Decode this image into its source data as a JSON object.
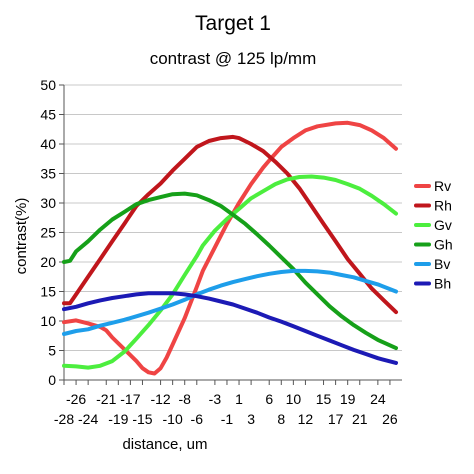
{
  "chart_data": {
    "type": "line",
    "title": "Target 1",
    "subtitle": "contrast @ 125 lp/mm",
    "xlabel": "distance, um",
    "ylabel": "contrast(%)",
    "ylim": [
      0,
      50
    ],
    "yticks": [
      0,
      5,
      10,
      15,
      20,
      25,
      30,
      35,
      40,
      45,
      50
    ],
    "xlim": [
      -28,
      28
    ],
    "xticks_upper": [
      -26,
      -21,
      -17,
      -12,
      -8,
      -3,
      1,
      6,
      10,
      15,
      19,
      24
    ],
    "xticks_lower": [
      -28,
      -24,
      -19,
      -15,
      -10,
      -6,
      -1,
      3,
      8,
      12,
      17,
      21,
      26
    ],
    "grid": "horizontal",
    "legend_position": "right",
    "series": [
      {
        "name": "Rv",
        "color": "#ef4444",
        "points": [
          [
            -28,
            9.8
          ],
          [
            -26,
            10.1
          ],
          [
            -24,
            9.6
          ],
          [
            -22,
            9.0
          ],
          [
            -21,
            8.4
          ],
          [
            -20,
            7.2
          ],
          [
            -18,
            5.2
          ],
          [
            -16,
            3.2
          ],
          [
            -15,
            2.0
          ],
          [
            -14,
            1.3
          ],
          [
            -13,
            1.1
          ],
          [
            -12,
            2.0
          ],
          [
            -11,
            3.8
          ],
          [
            -10,
            6.0
          ],
          [
            -8,
            10.5
          ],
          [
            -6,
            15.8
          ],
          [
            -5,
            18.5
          ],
          [
            -3,
            22.5
          ],
          [
            -1,
            26.5
          ],
          [
            1,
            30.0
          ],
          [
            3,
            33.2
          ],
          [
            5,
            36.0
          ],
          [
            6,
            37.2
          ],
          [
            8,
            39.5
          ],
          [
            10,
            41.0
          ],
          [
            12,
            42.3
          ],
          [
            14,
            43.0
          ],
          [
            17,
            43.5
          ],
          [
            19,
            43.6
          ],
          [
            21,
            43.2
          ],
          [
            23,
            42.3
          ],
          [
            25,
            41.0
          ],
          [
            27,
            39.2
          ]
        ]
      },
      {
        "name": "Rh",
        "color": "#c0161c",
        "points": [
          [
            -28,
            13.0
          ],
          [
            -27,
            13.0
          ],
          [
            -26,
            14.5
          ],
          [
            -24,
            17.5
          ],
          [
            -22,
            20.5
          ],
          [
            -20,
            23.5
          ],
          [
            -18,
            26.5
          ],
          [
            -16,
            29.5
          ],
          [
            -14,
            31.5
          ],
          [
            -12,
            33.3
          ],
          [
            -10,
            35.5
          ],
          [
            -8,
            37.5
          ],
          [
            -6,
            39.5
          ],
          [
            -4,
            40.5
          ],
          [
            -2,
            41.0
          ],
          [
            0,
            41.2
          ],
          [
            1,
            41.0
          ],
          [
            3,
            40.0
          ],
          [
            5,
            38.8
          ],
          [
            7,
            37.0
          ],
          [
            9,
            35.0
          ],
          [
            11,
            32.5
          ],
          [
            13,
            29.5
          ],
          [
            15,
            26.5
          ],
          [
            17,
            23.5
          ],
          [
            19,
            20.5
          ],
          [
            21,
            18.0
          ],
          [
            23,
            15.5
          ],
          [
            25,
            13.5
          ],
          [
            27,
            11.5
          ]
        ]
      },
      {
        "name": "Gv",
        "color": "#4cee3e",
        "points": [
          [
            -28,
            2.4
          ],
          [
            -26,
            2.3
          ],
          [
            -24,
            2.1
          ],
          [
            -22,
            2.4
          ],
          [
            -20,
            3.2
          ],
          [
            -18,
            4.8
          ],
          [
            -16,
            7.0
          ],
          [
            -14,
            9.3
          ],
          [
            -12,
            11.8
          ],
          [
            -10,
            14.5
          ],
          [
            -8,
            17.8
          ],
          [
            -6,
            21.0
          ],
          [
            -5,
            22.8
          ],
          [
            -3,
            25.3
          ],
          [
            -1,
            27.3
          ],
          [
            1,
            29.0
          ],
          [
            3,
            30.8
          ],
          [
            5,
            32.0
          ],
          [
            7,
            33.2
          ],
          [
            9,
            34.0
          ],
          [
            11,
            34.4
          ],
          [
            13,
            34.5
          ],
          [
            15,
            34.3
          ],
          [
            17,
            33.9
          ],
          [
            19,
            33.2
          ],
          [
            21,
            32.4
          ],
          [
            23,
            31.2
          ],
          [
            25,
            29.8
          ],
          [
            27,
            28.2
          ]
        ]
      },
      {
        "name": "Gh",
        "color": "#16a019",
        "points": [
          [
            -28,
            20.0
          ],
          [
            -27,
            20.2
          ],
          [
            -26,
            21.8
          ],
          [
            -24,
            23.5
          ],
          [
            -22,
            25.5
          ],
          [
            -20,
            27.2
          ],
          [
            -18,
            28.5
          ],
          [
            -16,
            29.8
          ],
          [
            -14,
            30.5
          ],
          [
            -12,
            31.0
          ],
          [
            -10,
            31.5
          ],
          [
            -8,
            31.6
          ],
          [
            -6,
            31.3
          ],
          [
            -4,
            30.5
          ],
          [
            -2,
            29.5
          ],
          [
            0,
            28.0
          ],
          [
            2,
            26.5
          ],
          [
            4,
            24.7
          ],
          [
            6,
            22.8
          ],
          [
            8,
            20.8
          ],
          [
            10,
            18.8
          ],
          [
            12,
            16.5
          ],
          [
            14,
            14.5
          ],
          [
            16,
            12.5
          ],
          [
            18,
            10.8
          ],
          [
            20,
            9.3
          ],
          [
            22,
            8.0
          ],
          [
            24,
            6.8
          ],
          [
            27,
            5.4
          ]
        ]
      },
      {
        "name": "Bv",
        "color": "#1e9eea",
        "points": [
          [
            -28,
            7.8
          ],
          [
            -26,
            8.3
          ],
          [
            -24,
            8.6
          ],
          [
            -22,
            9.2
          ],
          [
            -20,
            9.7
          ],
          [
            -18,
            10.2
          ],
          [
            -16,
            10.8
          ],
          [
            -14,
            11.4
          ],
          [
            -12,
            12.1
          ],
          [
            -10,
            12.8
          ],
          [
            -8,
            13.6
          ],
          [
            -6,
            14.5
          ],
          [
            -4,
            15.3
          ],
          [
            -2,
            16.0
          ],
          [
            0,
            16.6
          ],
          [
            2,
            17.1
          ],
          [
            4,
            17.6
          ],
          [
            6,
            18.0
          ],
          [
            8,
            18.3
          ],
          [
            10,
            18.5
          ],
          [
            12,
            18.5
          ],
          [
            14,
            18.4
          ],
          [
            16,
            18.2
          ],
          [
            18,
            17.8
          ],
          [
            20,
            17.4
          ],
          [
            22,
            16.8
          ],
          [
            24,
            16.2
          ],
          [
            27,
            15.0
          ]
        ]
      },
      {
        "name": "Bh",
        "color": "#1c1ab5",
        "points": [
          [
            -28,
            12.0
          ],
          [
            -26,
            12.4
          ],
          [
            -24,
            13.0
          ],
          [
            -22,
            13.5
          ],
          [
            -20,
            13.9
          ],
          [
            -18,
            14.2
          ],
          [
            -16,
            14.5
          ],
          [
            -14,
            14.7
          ],
          [
            -12,
            14.7
          ],
          [
            -10,
            14.7
          ],
          [
            -8,
            14.5
          ],
          [
            -6,
            14.2
          ],
          [
            -4,
            13.8
          ],
          [
            -2,
            13.3
          ],
          [
            0,
            12.8
          ],
          [
            2,
            12.1
          ],
          [
            4,
            11.4
          ],
          [
            6,
            10.6
          ],
          [
            8,
            9.9
          ],
          [
            10,
            9.1
          ],
          [
            12,
            8.3
          ],
          [
            14,
            7.5
          ],
          [
            16,
            6.7
          ],
          [
            18,
            5.9
          ],
          [
            20,
            5.1
          ],
          [
            22,
            4.4
          ],
          [
            24,
            3.7
          ],
          [
            27,
            2.9
          ]
        ]
      }
    ]
  }
}
